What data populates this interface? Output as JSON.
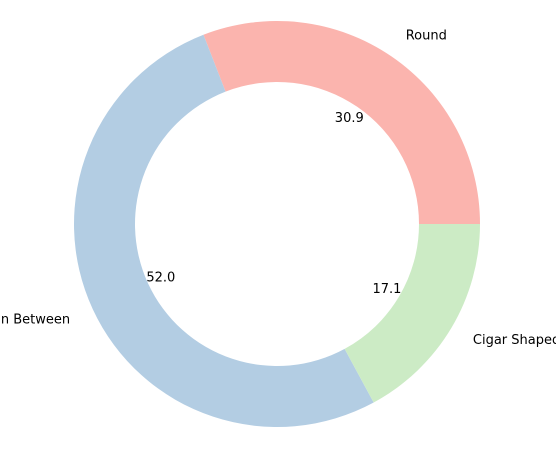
{
  "chart_data": {
    "type": "pie",
    "variant": "donut",
    "start_angle_deg": 0,
    "direction": "counterclockwise",
    "categories": [
      "Round",
      "In Between",
      "Cigar Shaped"
    ],
    "values": [
      30.9,
      52.0,
      17.1
    ],
    "value_labels": [
      "30.9",
      "52.0",
      "17.1"
    ],
    "colors": [
      "#fbb4ae",
      "#b3cde3",
      "#ccebc5"
    ],
    "legend": "none"
  }
}
